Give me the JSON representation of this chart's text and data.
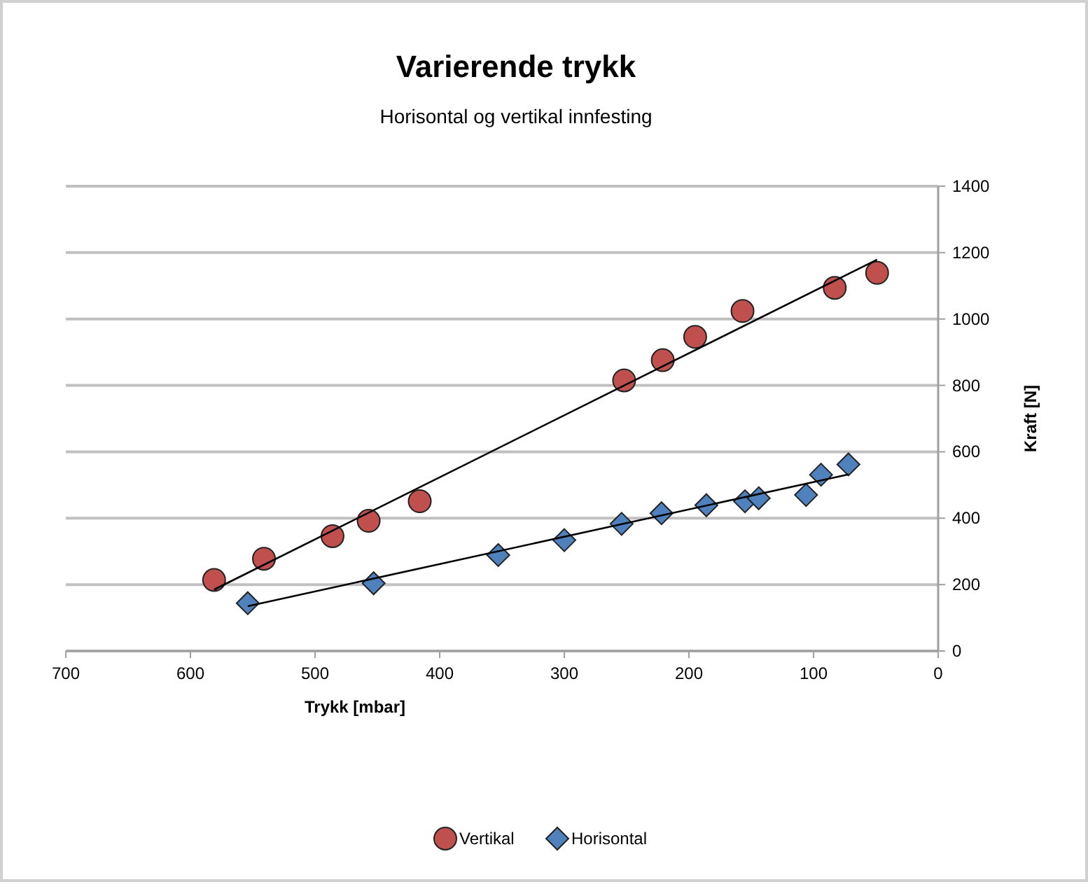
{
  "chart_data": {
    "type": "scatter",
    "title": "Varierende trykk",
    "subtitle": "Horisontal og vertikal innfesting",
    "xlabel": "Trykk [mbar]",
    "ylabel": "Kraft [N]",
    "xlim": [
      700,
      0
    ],
    "xticks": [
      700,
      600,
      500,
      400,
      300,
      200,
      100,
      0
    ],
    "ylim": [
      0,
      1400
    ],
    "yticks": [
      0,
      200,
      400,
      600,
      800,
      1000,
      1200,
      1400
    ],
    "grid": "y",
    "legend": "bottom",
    "series": [
      {
        "name": "Vertikal",
        "color": "#c0504d",
        "marker": "circle",
        "x": [
          581,
          541,
          486,
          457,
          416,
          252,
          221,
          195,
          157,
          83,
          49
        ],
        "values": [
          214,
          278,
          346,
          392,
          451,
          815,
          876,
          946,
          1024,
          1094,
          1139
        ]
      },
      {
        "name": "Horisontal",
        "color": "#4f81bd",
        "marker": "diamond",
        "x": [
          554,
          453,
          353,
          300,
          254,
          222,
          186,
          155,
          144,
          106,
          94,
          72
        ],
        "values": [
          144,
          204,
          289,
          334,
          383,
          415,
          439,
          451,
          460,
          470,
          531,
          562
        ]
      },
      {
        "type": "line",
        "color": "#000000",
        "marker": "none",
        "x": [
          581,
          49
        ],
        "values": [
          185,
          1179
        ]
      },
      {
        "type": "line",
        "color": "#000000",
        "marker": "none",
        "x": [
          554,
          72
        ],
        "values": [
          135,
          532
        ]
      }
    ]
  }
}
